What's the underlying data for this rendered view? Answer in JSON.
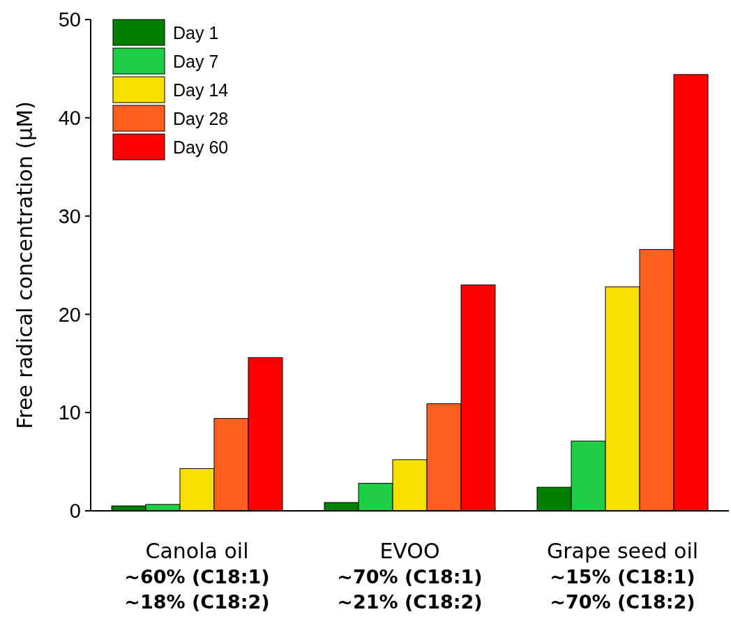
{
  "chart_data": {
    "type": "bar",
    "ylabel": "Free radical concentration (μM)",
    "categories": [
      "Canola oil\n~60% (C18:1)\n~18% (C18:2)",
      "EVOO\n~70% (C18:1)\n~21% (C18:2)",
      "Grape seed oil\n~15% (C18:1)\n~70% (C18:2)"
    ],
    "series": [
      {
        "name": "Day 1",
        "color": "#008000",
        "values": [
          0.5,
          0.85,
          2.4
        ]
      },
      {
        "name": "Day 7",
        "color": "#1ecf45",
        "values": [
          0.65,
          2.8,
          7.1
        ]
      },
      {
        "name": "Day 14",
        "color": "#f5e000",
        "values": [
          4.3,
          5.2,
          22.8
        ]
      },
      {
        "name": "Day 28",
        "color": "#ff6020",
        "values": [
          9.4,
          10.9,
          26.6
        ]
      },
      {
        "name": "Day 60",
        "color": "#ff0000",
        "values": [
          15.6,
          23.0,
          44.4
        ]
      }
    ],
    "ylim": [
      0,
      50
    ],
    "yticks": [
      0,
      10,
      20,
      30,
      40,
      50
    ],
    "grid": false,
    "legend": "top left"
  }
}
